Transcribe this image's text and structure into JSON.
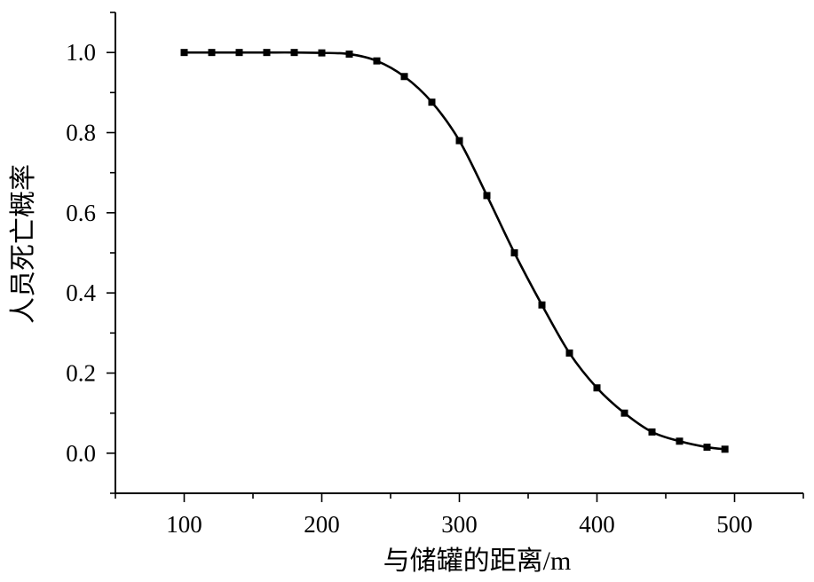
{
  "chart_data": {
    "type": "line",
    "xlabel": "与储罐的距离/m",
    "ylabel": "人员死亡概率",
    "xlim": [
      50,
      550
    ],
    "ylim": [
      -0.1,
      1.1
    ],
    "xticks": [
      100,
      200,
      300,
      400,
      500
    ],
    "xtick_labels": [
      "100",
      "200",
      "300",
      "400",
      "500"
    ],
    "yticks": [
      0.0,
      0.2,
      0.4,
      0.6,
      0.8,
      1.0
    ],
    "ytick_labels": [
      "0.0",
      "0.2",
      "0.4",
      "0.6",
      "0.8",
      "1.0"
    ],
    "grid": false,
    "legend": "none",
    "series": [
      {
        "marker": "square",
        "color": "#000000",
        "x": [
          100,
          120,
          140,
          160,
          180,
          200,
          220,
          240,
          260,
          280,
          300,
          320,
          340,
          360,
          380,
          400,
          420,
          440,
          460,
          480,
          493
        ],
        "y": [
          1.0,
          1.0,
          1.0,
          1.0,
          1.0,
          0.999,
          0.996,
          0.979,
          0.94,
          0.876,
          0.78,
          0.643,
          0.5,
          0.37,
          0.25,
          0.163,
          0.1,
          0.053,
          0.03,
          0.015,
          0.01
        ]
      }
    ]
  }
}
